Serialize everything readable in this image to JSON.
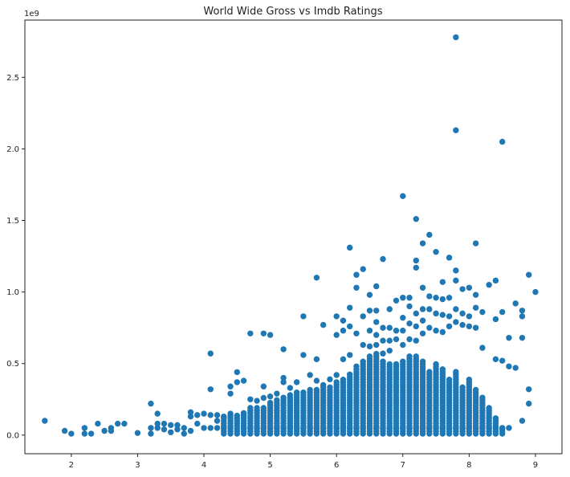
{
  "chart_data": {
    "type": "scatter",
    "title": "World Wide Gross vs Imdb Ratings",
    "xlabel": "",
    "ylabel": "",
    "xlim": [
      1.3,
      9.4
    ],
    "ylim": [
      -0.13,
      2.9
    ],
    "x_ticks": [
      2,
      3,
      4,
      5,
      6,
      7,
      8,
      9
    ],
    "y_ticks": [
      0.0,
      0.5,
      1.0,
      1.5,
      2.0,
      2.5
    ],
    "y_tick_labels": [
      "0.0",
      "0.5",
      "1.0",
      "1.5",
      "2.0",
      "2.5"
    ],
    "y_offset_label": "1e9",
    "marker_color": "#1f77b4",
    "grid": false,
    "series": [
      {
        "points": [
          [
            1.6,
            0.1
          ],
          [
            1.9,
            0.03
          ],
          [
            2.0,
            0.01
          ],
          [
            2.2,
            0.05
          ],
          [
            2.2,
            0.01
          ],
          [
            2.3,
            0.01
          ],
          [
            2.4,
            0.08
          ],
          [
            2.5,
            0.03
          ],
          [
            2.6,
            0.05
          ],
          [
            2.6,
            0.03
          ],
          [
            2.7,
            0.08
          ],
          [
            2.8,
            0.08
          ],
          [
            3.0,
            0.015
          ],
          [
            3.2,
            0.22
          ],
          [
            3.2,
            0.05
          ],
          [
            3.2,
            0.01
          ],
          [
            3.3,
            0.15
          ],
          [
            3.3,
            0.08
          ],
          [
            3.3,
            0.05
          ],
          [
            3.4,
            0.08
          ],
          [
            3.4,
            0.04
          ],
          [
            3.5,
            0.07
          ],
          [
            3.5,
            0.02
          ],
          [
            3.6,
            0.07
          ],
          [
            3.6,
            0.04
          ],
          [
            3.7,
            0.05
          ],
          [
            3.7,
            0.01
          ],
          [
            3.8,
            0.16
          ],
          [
            3.8,
            0.13
          ],
          [
            3.8,
            0.03
          ],
          [
            3.9,
            0.14
          ],
          [
            3.9,
            0.08
          ],
          [
            4.0,
            0.15
          ],
          [
            4.0,
            0.05
          ],
          [
            4.1,
            0.57
          ],
          [
            4.1,
            0.32
          ],
          [
            4.1,
            0.14
          ],
          [
            4.1,
            0.05
          ],
          [
            4.2,
            0.14
          ],
          [
            4.2,
            0.1
          ],
          [
            4.2,
            0.05
          ],
          [
            4.3,
            0.13
          ],
          [
            4.3,
            0.05
          ],
          [
            4.4,
            0.34
          ],
          [
            4.4,
            0.29
          ],
          [
            4.4,
            0.15
          ],
          [
            4.4,
            0.05
          ],
          [
            4.5,
            0.44
          ],
          [
            4.5,
            0.37
          ],
          [
            4.5,
            0.11
          ],
          [
            4.6,
            0.38
          ],
          [
            4.6,
            0.15
          ],
          [
            4.6,
            0.05
          ],
          [
            4.7,
            0.71
          ],
          [
            4.7,
            0.25
          ],
          [
            4.7,
            0.05
          ],
          [
            4.8,
            0.24
          ],
          [
            4.8,
            0.05
          ],
          [
            4.9,
            0.71
          ],
          [
            4.9,
            0.34
          ],
          [
            4.9,
            0.26
          ],
          [
            4.9,
            0.05
          ],
          [
            5.0,
            0.7
          ],
          [
            5.0,
            0.27
          ],
          [
            5.0,
            0.05
          ],
          [
            5.1,
            0.29
          ],
          [
            5.1,
            0.05
          ],
          [
            5.2,
            0.6
          ],
          [
            5.2,
            0.4
          ],
          [
            5.2,
            0.37
          ],
          [
            5.2,
            0.05
          ],
          [
            5.3,
            0.33
          ],
          [
            5.3,
            0.05
          ],
          [
            5.4,
            0.37
          ],
          [
            5.4,
            0.05
          ],
          [
            5.5,
            0.83
          ],
          [
            5.5,
            0.56
          ],
          [
            5.5,
            0.05
          ],
          [
            5.6,
            0.42
          ],
          [
            5.6,
            0.05
          ],
          [
            5.7,
            1.1
          ],
          [
            5.7,
            0.53
          ],
          [
            5.7,
            0.38
          ],
          [
            5.7,
            0.05
          ],
          [
            5.8,
            0.77
          ],
          [
            5.8,
            0.35
          ],
          [
            5.8,
            0.05
          ],
          [
            5.9,
            0.39
          ],
          [
            5.9,
            0.05
          ],
          [
            6.0,
            0.83
          ],
          [
            6.0,
            0.7
          ],
          [
            6.0,
            0.42
          ],
          [
            6.0,
            0.05
          ],
          [
            6.1,
            0.8
          ],
          [
            6.1,
            0.73
          ],
          [
            6.1,
            0.53
          ],
          [
            6.1,
            0.05
          ],
          [
            6.2,
            1.31
          ],
          [
            6.2,
            0.89
          ],
          [
            6.2,
            0.76
          ],
          [
            6.2,
            0.56
          ],
          [
            6.2,
            0.05
          ],
          [
            6.3,
            1.12
          ],
          [
            6.3,
            1.03
          ],
          [
            6.3,
            0.71
          ],
          [
            6.3,
            0.48
          ],
          [
            6.3,
            0.05
          ],
          [
            6.4,
            1.16
          ],
          [
            6.4,
            0.83
          ],
          [
            6.4,
            0.63
          ],
          [
            6.4,
            0.05
          ],
          [
            6.5,
            0.98
          ],
          [
            6.5,
            0.87
          ],
          [
            6.5,
            0.73
          ],
          [
            6.5,
            0.62
          ],
          [
            6.5,
            0.05
          ],
          [
            6.6,
            1.04
          ],
          [
            6.6,
            0.87
          ],
          [
            6.6,
            0.79
          ],
          [
            6.6,
            0.7
          ],
          [
            6.6,
            0.63
          ],
          [
            6.6,
            0.05
          ],
          [
            6.7,
            1.23
          ],
          [
            6.7,
            0.75
          ],
          [
            6.7,
            0.66
          ],
          [
            6.7,
            0.57
          ],
          [
            6.7,
            0.05
          ],
          [
            6.8,
            0.88
          ],
          [
            6.8,
            0.75
          ],
          [
            6.8,
            0.66
          ],
          [
            6.8,
            0.59
          ],
          [
            6.8,
            0.05
          ],
          [
            6.9,
            0.94
          ],
          [
            6.9,
            0.73
          ],
          [
            6.9,
            0.67
          ],
          [
            6.9,
            0.05
          ],
          [
            7.0,
            1.67
          ],
          [
            7.0,
            0.96
          ],
          [
            7.0,
            0.82
          ],
          [
            7.0,
            0.73
          ],
          [
            7.0,
            0.63
          ],
          [
            7.0,
            0.05
          ],
          [
            7.1,
            0.96
          ],
          [
            7.1,
            0.9
          ],
          [
            7.1,
            0.78
          ],
          [
            7.1,
            0.67
          ],
          [
            7.1,
            0.05
          ],
          [
            7.2,
            1.51
          ],
          [
            7.2,
            1.22
          ],
          [
            7.2,
            1.17
          ],
          [
            7.2,
            0.85
          ],
          [
            7.2,
            0.76
          ],
          [
            7.2,
            0.66
          ],
          [
            7.2,
            0.05
          ],
          [
            7.3,
            1.34
          ],
          [
            7.3,
            1.03
          ],
          [
            7.3,
            0.88
          ],
          [
            7.3,
            0.8
          ],
          [
            7.3,
            0.71
          ],
          [
            7.3,
            0.05
          ],
          [
            7.4,
            1.4
          ],
          [
            7.4,
            0.97
          ],
          [
            7.4,
            0.88
          ],
          [
            7.4,
            0.75
          ],
          [
            7.4,
            0.05
          ],
          [
            7.5,
            1.28
          ],
          [
            7.5,
            0.96
          ],
          [
            7.5,
            0.85
          ],
          [
            7.5,
            0.73
          ],
          [
            7.5,
            0.05
          ],
          [
            7.6,
            1.07
          ],
          [
            7.6,
            0.95
          ],
          [
            7.6,
            0.84
          ],
          [
            7.6,
            0.72
          ],
          [
            7.6,
            0.05
          ],
          [
            7.7,
            1.24
          ],
          [
            7.7,
            0.96
          ],
          [
            7.7,
            0.83
          ],
          [
            7.7,
            0.76
          ],
          [
            7.7,
            0.05
          ],
          [
            7.8,
            2.78
          ],
          [
            7.8,
            2.13
          ],
          [
            7.8,
            1.15
          ],
          [
            7.8,
            1.08
          ],
          [
            7.8,
            0.88
          ],
          [
            7.8,
            0.79
          ],
          [
            7.8,
            0.05
          ],
          [
            7.9,
            1.02
          ],
          [
            7.9,
            0.85
          ],
          [
            7.9,
            0.77
          ],
          [
            7.9,
            0.05
          ],
          [
            8.0,
            1.03
          ],
          [
            8.0,
            0.83
          ],
          [
            8.0,
            0.76
          ],
          [
            8.0,
            0.05
          ],
          [
            8.1,
            1.34
          ],
          [
            8.1,
            0.98
          ],
          [
            8.1,
            0.89
          ],
          [
            8.1,
            0.75
          ],
          [
            8.1,
            0.05
          ],
          [
            8.2,
            0.86
          ],
          [
            8.2,
            0.61
          ],
          [
            8.2,
            0.05
          ],
          [
            8.3,
            1.05
          ],
          [
            8.3,
            0.05
          ],
          [
            8.4,
            1.08
          ],
          [
            8.4,
            0.81
          ],
          [
            8.4,
            0.53
          ],
          [
            8.4,
            0.05
          ],
          [
            8.5,
            2.05
          ],
          [
            8.5,
            0.86
          ],
          [
            8.5,
            0.52
          ],
          [
            8.5,
            0.05
          ],
          [
            8.6,
            0.68
          ],
          [
            8.6,
            0.48
          ],
          [
            8.6,
            0.05
          ],
          [
            8.7,
            0.92
          ],
          [
            8.7,
            0.47
          ],
          [
            8.8,
            0.87
          ],
          [
            8.8,
            0.83
          ],
          [
            8.8,
            0.68
          ],
          [
            8.8,
            0.1
          ],
          [
            8.9,
            1.12
          ],
          [
            8.9,
            0.32
          ],
          [
            8.9,
            0.22
          ],
          [
            9.0,
            1.0
          ]
        ],
        "columns": [
          [
            4.3,
            0.13
          ],
          [
            4.4,
            0.14
          ],
          [
            4.5,
            0.14
          ],
          [
            4.6,
            0.17
          ],
          [
            4.7,
            0.2
          ],
          [
            4.8,
            0.2
          ],
          [
            4.9,
            0.2
          ],
          [
            5.0,
            0.23
          ],
          [
            5.1,
            0.25
          ],
          [
            5.2,
            0.27
          ],
          [
            5.3,
            0.29
          ],
          [
            5.4,
            0.3
          ],
          [
            5.5,
            0.31
          ],
          [
            5.6,
            0.32
          ],
          [
            5.7,
            0.33
          ],
          [
            5.8,
            0.34
          ],
          [
            5.9,
            0.35
          ],
          [
            6.0,
            0.37
          ],
          [
            6.1,
            0.4
          ],
          [
            6.2,
            0.43
          ],
          [
            6.3,
            0.46
          ],
          [
            6.4,
            0.52
          ],
          [
            6.5,
            0.55
          ],
          [
            6.6,
            0.57
          ],
          [
            6.7,
            0.53
          ],
          [
            6.8,
            0.5
          ],
          [
            6.9,
            0.5
          ],
          [
            7.0,
            0.52
          ],
          [
            7.1,
            0.55
          ],
          [
            7.2,
            0.55
          ],
          [
            7.3,
            0.52
          ],
          [
            7.4,
            0.45
          ],
          [
            7.5,
            0.5
          ],
          [
            7.6,
            0.47
          ],
          [
            7.7,
            0.4
          ],
          [
            7.8,
            0.45
          ],
          [
            7.9,
            0.35
          ],
          [
            8.0,
            0.4
          ],
          [
            8.1,
            0.33
          ],
          [
            8.2,
            0.27
          ],
          [
            8.3,
            0.2
          ],
          [
            8.4,
            0.12
          ],
          [
            8.5,
            0.05
          ]
        ]
      }
    ]
  }
}
